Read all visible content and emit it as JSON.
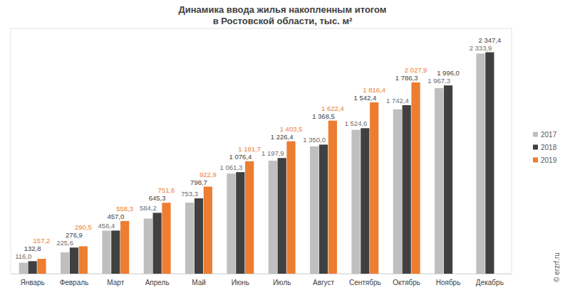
{
  "chart_data": {
    "type": "bar",
    "title": "Динамика ввода жилья накопленным итогом\nв Ростовской области, тыс. м²",
    "annotation": "© erzrf.ru",
    "categories": [
      "Январь",
      "Февраль",
      "Март",
      "Апрель",
      "Май",
      "Июнь",
      "Июль",
      "Август",
      "Сентябрь",
      "Октябрь",
      "Ноябрь",
      "Декабрь"
    ],
    "series": [
      {
        "name": "2017",
        "color": "#bfbfbf",
        "values": [
          116.0,
          225.6,
          456.4,
          584.2,
          753.3,
          1061.3,
          1197.9,
          1350.0,
          1524.6,
          1742.4,
          1967.3,
          2333.9
        ],
        "value_labels": [
          "116,0",
          "225,6",
          "456,4",
          "584,2",
          "753,3",
          "1 061,3",
          "1 197,9",
          "1 350,0",
          "1 524,6",
          "1 742,4",
          "1 967,3",
          "2 333,9"
        ]
      },
      {
        "name": "2018",
        "color": "#404040",
        "values": [
          132.8,
          276.9,
          457.0,
          645.3,
          798.7,
          1076.4,
          1226.4,
          1368.5,
          1542.4,
          1786.3,
          1996.0,
          2347.4
        ],
        "value_labels": [
          "132,8",
          "276,9",
          "457,0",
          "645,3",
          "798,7",
          "1 076,4",
          "1 226,4",
          "1 368,5",
          "1 542,4",
          "1 786,3",
          "1 996,0",
          "2 347,4"
        ]
      },
      {
        "name": "2019",
        "color": "#ed7d31",
        "values": [
          157.2,
          290.5,
          558.3,
          751.6,
          922.9,
          1191.7,
          1403.5,
          1622.4,
          1816.4,
          2027.9,
          null,
          null
        ],
        "value_labels": [
          "157,2",
          "290,5",
          "558,3",
          "751,6",
          "922,9",
          "1 191,7",
          "1 403,5",
          "1 622,4",
          "1 816,4",
          "2 027,9",
          null,
          null
        ]
      }
    ],
    "ylim": [
      0,
      2600
    ],
    "grid": false,
    "data_labels": true,
    "tick_labels": "x",
    "legend": "right"
  }
}
